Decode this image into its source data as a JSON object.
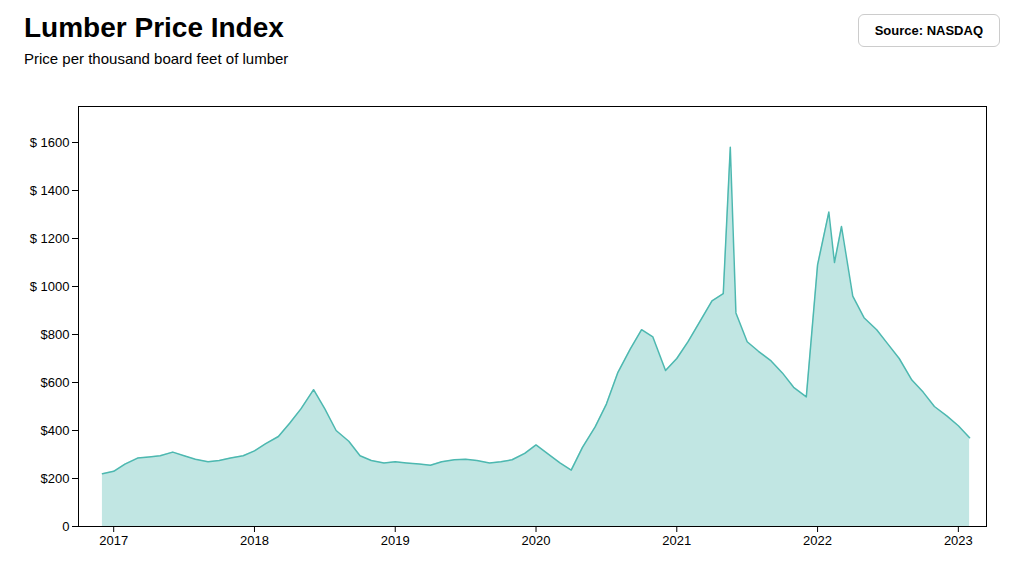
{
  "chart_data": {
    "type": "area",
    "title": "Lumber Price Index",
    "subtitle": "Price per thousand board feet of lumber",
    "source": "Source: NASDAQ",
    "color": "#4db8b0",
    "x": [
      2016.92,
      2017.0,
      2017.08,
      2017.17,
      2017.25,
      2017.33,
      2017.42,
      2017.5,
      2017.58,
      2017.67,
      2017.75,
      2017.83,
      2017.92,
      2018.0,
      2018.08,
      2018.17,
      2018.25,
      2018.33,
      2018.42,
      2018.5,
      2018.58,
      2018.67,
      2018.75,
      2018.83,
      2018.92,
      2019.0,
      2019.08,
      2019.17,
      2019.25,
      2019.33,
      2019.42,
      2019.5,
      2019.58,
      2019.67,
      2019.75,
      2019.83,
      2019.92,
      2020.0,
      2020.08,
      2020.17,
      2020.25,
      2020.33,
      2020.42,
      2020.5,
      2020.58,
      2020.67,
      2020.75,
      2020.83,
      2020.92,
      2021.0,
      2021.08,
      2021.17,
      2021.25,
      2021.33,
      2021.38,
      2021.42,
      2021.5,
      2021.58,
      2021.67,
      2021.75,
      2021.83,
      2021.92,
      2022.0,
      2022.08,
      2022.12,
      2022.17,
      2022.25,
      2022.33,
      2022.42,
      2022.5,
      2022.58,
      2022.67,
      2022.75,
      2022.83,
      2022.92,
      2023.0,
      2023.08
    ],
    "values": [
      220,
      230,
      260,
      285,
      290,
      295,
      310,
      295,
      280,
      270,
      275,
      285,
      295,
      315,
      345,
      375,
      430,
      490,
      570,
      490,
      400,
      355,
      295,
      275,
      265,
      270,
      265,
      260,
      255,
      270,
      278,
      280,
      275,
      265,
      270,
      278,
      305,
      340,
      305,
      265,
      235,
      330,
      415,
      510,
      640,
      740,
      820,
      790,
      650,
      700,
      770,
      860,
      940,
      970,
      1580,
      890,
      770,
      730,
      690,
      640,
      580,
      540,
      1090,
      1310,
      1100,
      1250,
      960,
      870,
      820,
      760,
      700,
      610,
      560,
      500,
      460,
      420,
      370
    ],
    "xlim": [
      2016.75,
      2023.2
    ],
    "xticks": [
      2017,
      2018,
      2019,
      2020,
      2021,
      2022,
      2023
    ],
    "ylim": [
      0,
      1750
    ],
    "yticks": [
      0,
      {
        "value": 200,
        "label": "$200"
      },
      {
        "value": 400,
        "label": "$400"
      },
      {
        "value": 600,
        "label": "$600"
      },
      {
        "value": 800,
        "label": "$800"
      },
      {
        "value": 1000,
        "label": "$ 1000"
      },
      {
        "value": 1200,
        "label": "$ 1200"
      },
      {
        "value": 1400,
        "label": "$ 1400"
      },
      {
        "value": 1600,
        "label": "$ 1600"
      }
    ],
    "grid": false
  }
}
